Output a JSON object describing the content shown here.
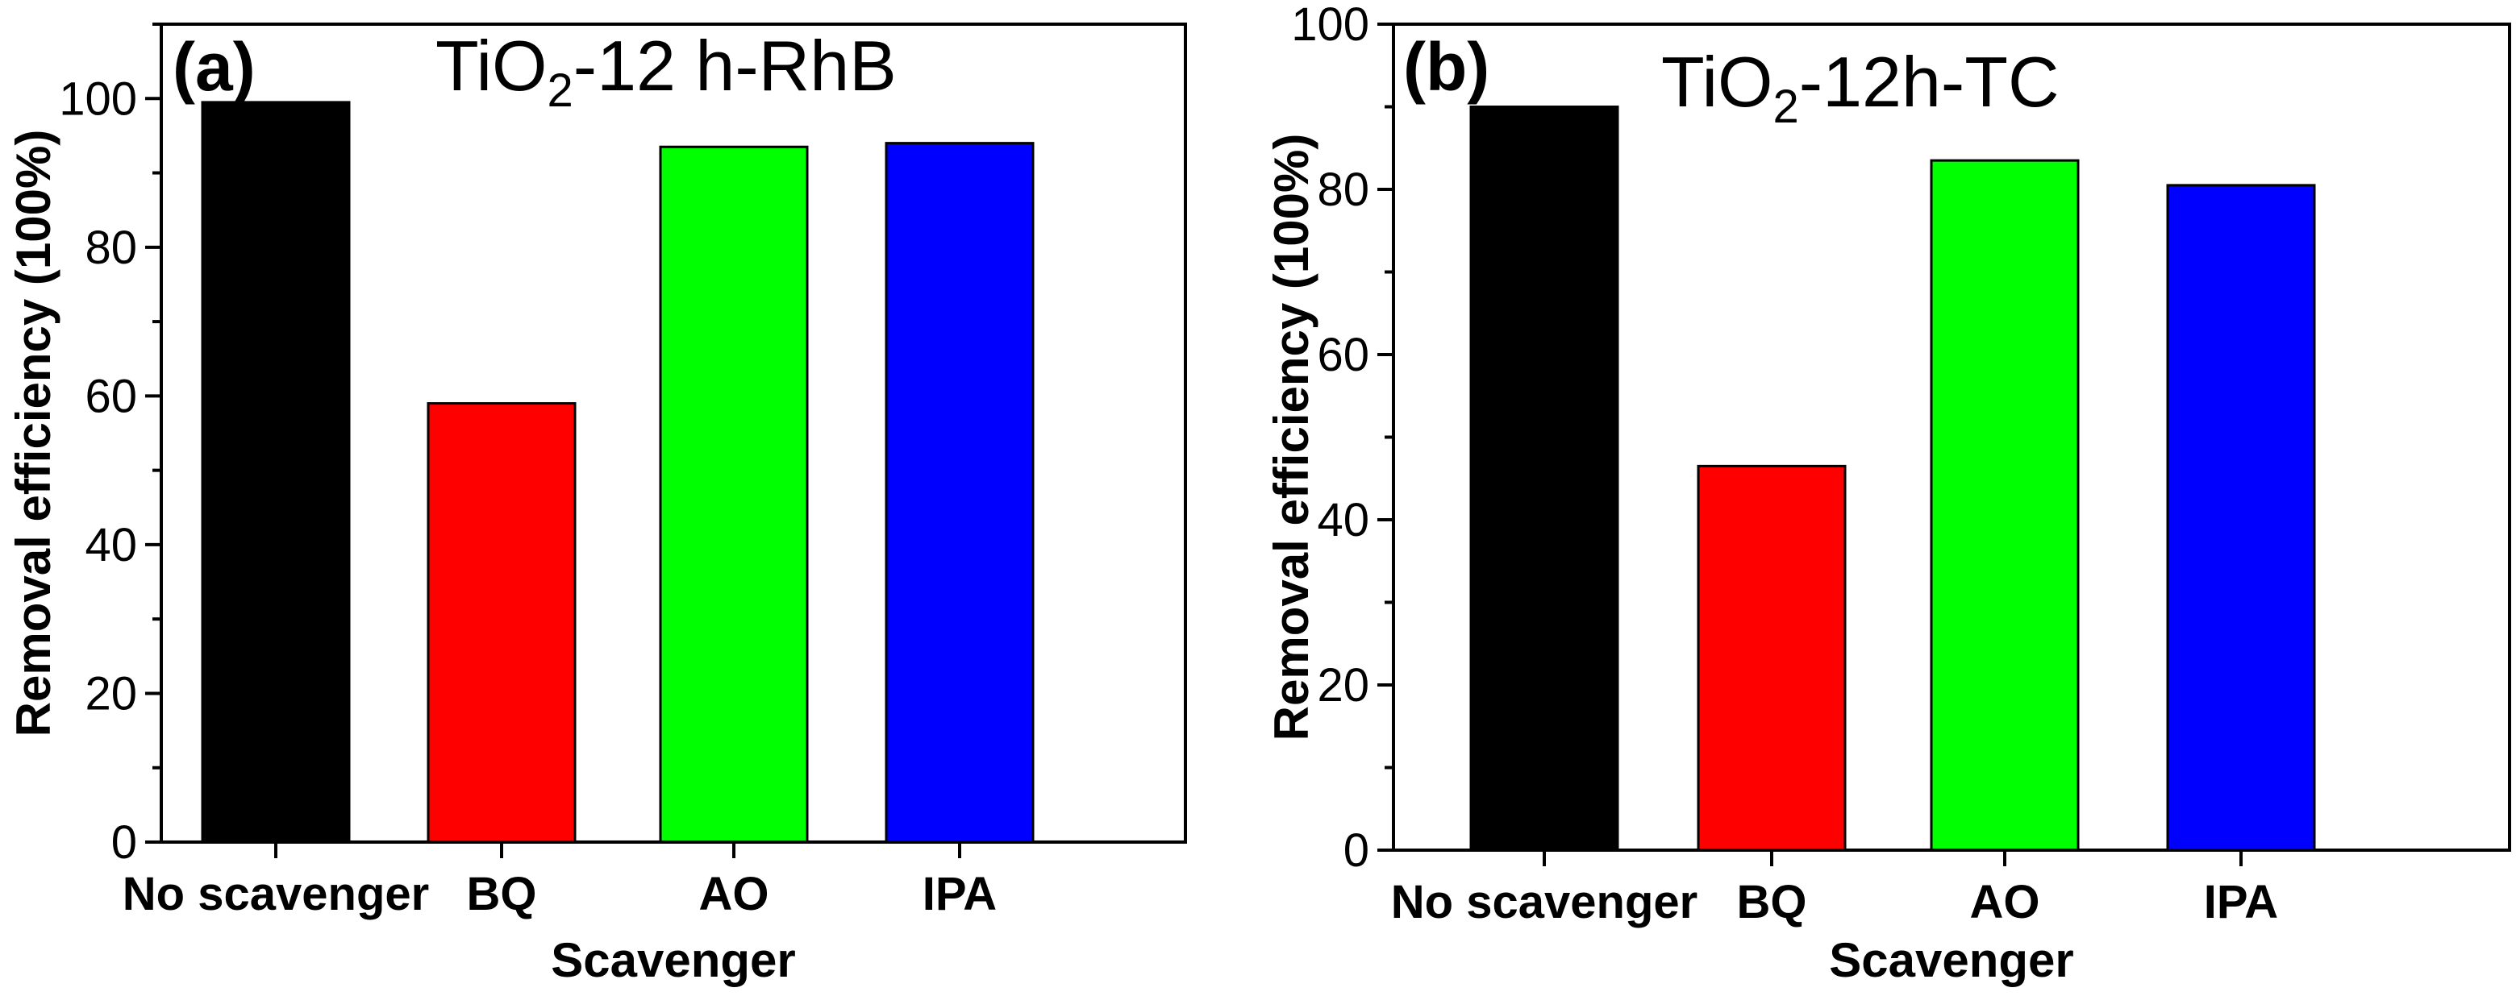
{
  "chart_data": [
    {
      "type": "bar",
      "panel_label": "(a)",
      "title": {
        "prefix": "TiO",
        "subscript": "2",
        "suffix": "-12 h-RhB"
      },
      "categories": [
        "No scavenger",
        "BQ",
        "AO",
        "IPA"
      ],
      "values": [
        99.5,
        59,
        93.5,
        94
      ],
      "colors": [
        "#000000",
        "#ff0000",
        "#00ff00",
        "#0000ff"
      ],
      "xlabel": "Scavenger",
      "ylabel": "Removal efficiency (100%)",
      "ylim": [
        0,
        110
      ],
      "yticks": [
        0,
        20,
        40,
        60,
        80,
        100
      ],
      "grid": false
    },
    {
      "type": "bar",
      "panel_label": "(b)",
      "title": {
        "prefix": "TiO",
        "subscript": "2",
        "suffix": "-12h-TC"
      },
      "categories": [
        "No scavenger",
        "BQ",
        "AO",
        "IPA"
      ],
      "values": [
        90,
        46.5,
        83.5,
        80.5
      ],
      "colors": [
        "#000000",
        "#ff0000",
        "#00ff00",
        "#0000ff"
      ],
      "xlabel": "Scavenger",
      "ylabel": "Removal efficiency (100%)",
      "ylim": [
        0,
        100
      ],
      "yticks": [
        0,
        20,
        40,
        60,
        80,
        100
      ],
      "grid": false
    }
  ]
}
